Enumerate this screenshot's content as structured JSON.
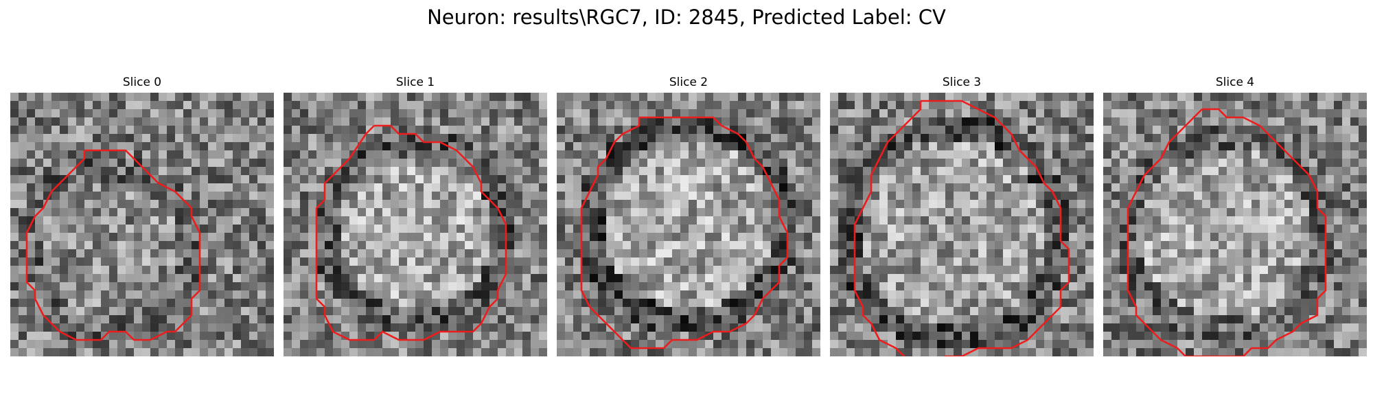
{
  "figure": {
    "title": "Neuron: results\\RGC7, ID: 2845, Predicted Label: CV",
    "colormap": "gray",
    "contour_color": "#ee1c1c",
    "grid_size": 32
  },
  "slices": [
    {
      "label": "Slice 0",
      "center_brightness": 0.55,
      "ring_brightness": 0.4,
      "cell_center": [
        12,
        19
      ],
      "cell_radius": 10,
      "contour": [
        [
          9,
          7
        ],
        [
          14,
          7
        ],
        [
          15,
          8
        ],
        [
          18,
          11
        ],
        [
          20,
          12
        ],
        [
          22,
          14
        ],
        [
          22,
          15
        ],
        [
          23,
          17
        ],
        [
          23,
          24
        ],
        [
          22,
          25
        ],
        [
          22,
          27
        ],
        [
          20,
          29
        ],
        [
          19,
          29
        ],
        [
          17,
          30
        ],
        [
          15,
          30
        ],
        [
          14,
          29
        ],
        [
          12,
          29
        ],
        [
          11,
          30
        ],
        [
          10,
          30
        ],
        [
          8,
          30
        ],
        [
          6,
          29
        ],
        [
          4,
          27
        ],
        [
          3,
          25
        ],
        [
          3,
          24
        ],
        [
          2,
          23
        ],
        [
          2,
          21
        ],
        [
          2,
          17
        ],
        [
          3,
          15
        ],
        [
          4,
          14
        ],
        [
          5,
          12
        ],
        [
          6,
          11
        ],
        [
          7,
          10
        ],
        [
          8,
          9
        ],
        [
          9,
          8
        ],
        [
          9,
          7
        ]
      ]
    },
    {
      "label": "Slice 1",
      "center_brightness": 0.65,
      "ring_brightness": 0.35,
      "cell_center": [
        16,
        17
      ],
      "cell_radius": 11,
      "contour": [
        [
          11,
          4
        ],
        [
          13,
          4
        ],
        [
          14,
          5
        ],
        [
          16,
          5
        ],
        [
          17,
          6
        ],
        [
          19,
          6
        ],
        [
          21,
          7
        ],
        [
          22,
          8
        ],
        [
          23,
          9
        ],
        [
          24,
          11
        ],
        [
          24,
          12
        ],
        [
          26,
          14
        ],
        [
          27,
          16
        ],
        [
          27,
          22
        ],
        [
          26,
          24
        ],
        [
          26,
          25
        ],
        [
          25,
          26
        ],
        [
          24,
          28
        ],
        [
          23,
          29
        ],
        [
          21,
          29
        ],
        [
          19,
          29
        ],
        [
          17,
          30
        ],
        [
          16,
          30
        ],
        [
          14,
          30
        ],
        [
          12,
          29
        ],
        [
          11,
          30
        ],
        [
          10,
          30
        ],
        [
          8,
          30
        ],
        [
          6,
          29
        ],
        [
          5,
          27
        ],
        [
          5,
          26
        ],
        [
          4,
          25
        ],
        [
          4,
          24
        ],
        [
          4,
          19
        ],
        [
          4,
          14
        ],
        [
          5,
          13
        ],
        [
          5,
          11
        ],
        [
          6,
          10
        ],
        [
          7,
          9
        ],
        [
          8,
          8
        ],
        [
          10,
          5
        ],
        [
          11,
          4
        ]
      ]
    },
    {
      "label": "Slice 2",
      "center_brightness": 0.65,
      "ring_brightness": 0.3,
      "cell_center": [
        16,
        16
      ],
      "cell_radius": 12,
      "contour": [
        [
          10,
          3
        ],
        [
          19,
          3
        ],
        [
          20,
          4
        ],
        [
          22,
          5
        ],
        [
          23,
          6
        ],
        [
          24,
          8
        ],
        [
          25,
          9
        ],
        [
          26,
          11
        ],
        [
          27,
          13
        ],
        [
          27,
          15
        ],
        [
          28,
          17
        ],
        [
          28,
          20
        ],
        [
          27,
          21
        ],
        [
          27,
          23
        ],
        [
          26,
          24
        ],
        [
          25,
          25
        ],
        [
          24,
          27
        ],
        [
          23,
          28
        ],
        [
          21,
          29
        ],
        [
          19,
          29
        ],
        [
          17,
          30
        ],
        [
          14,
          30
        ],
        [
          13,
          31
        ],
        [
          11,
          31
        ],
        [
          9,
          31
        ],
        [
          8,
          30
        ],
        [
          7,
          29
        ],
        [
          5,
          27
        ],
        [
          4,
          26
        ],
        [
          3,
          24
        ],
        [
          3,
          22
        ],
        [
          3,
          20
        ],
        [
          3,
          16
        ],
        [
          3,
          14
        ],
        [
          4,
          12
        ],
        [
          5,
          10
        ],
        [
          5,
          9
        ],
        [
          6,
          8
        ],
        [
          7,
          6
        ],
        [
          8,
          5
        ],
        [
          10,
          4
        ],
        [
          10,
          3
        ]
      ]
    },
    {
      "label": "Slice 3",
      "center_brightness": 0.62,
      "ring_brightness": 0.3,
      "cell_center": [
        15,
        17
      ],
      "cell_radius": 13,
      "contour": [
        [
          11,
          1
        ],
        [
          16,
          1
        ],
        [
          18,
          2
        ],
        [
          20,
          3
        ],
        [
          21,
          4
        ],
        [
          22,
          5
        ],
        [
          23,
          7
        ],
        [
          25,
          9
        ],
        [
          26,
          11
        ],
        [
          27,
          12
        ],
        [
          28,
          14
        ],
        [
          28,
          18
        ],
        [
          29,
          19
        ],
        [
          29,
          23
        ],
        [
          28,
          24
        ],
        [
          28,
          26
        ],
        [
          27,
          27
        ],
        [
          26,
          28
        ],
        [
          24,
          30
        ],
        [
          22,
          31
        ],
        [
          18,
          31
        ],
        [
          16,
          32
        ],
        [
          14,
          32
        ],
        [
          12,
          33
        ],
        [
          10,
          33
        ],
        [
          9,
          32
        ],
        [
          8,
          31
        ],
        [
          6,
          30
        ],
        [
          5,
          28
        ],
        [
          4,
          27
        ],
        [
          4,
          26
        ],
        [
          3,
          24
        ],
        [
          3,
          22
        ],
        [
          3,
          19
        ],
        [
          3,
          16
        ],
        [
          4,
          14
        ],
        [
          5,
          12
        ],
        [
          5,
          10
        ],
        [
          6,
          8
        ],
        [
          7,
          6
        ],
        [
          8,
          5
        ],
        [
          9,
          4
        ],
        [
          10,
          3
        ],
        [
          11,
          2
        ],
        [
          11,
          1
        ]
      ]
    },
    {
      "label": "Slice 4",
      "center_brightness": 0.65,
      "ring_brightness": 0.4,
      "cell_center": [
        15,
        17
      ],
      "cell_radius": 12,
      "contour": [
        [
          12,
          2
        ],
        [
          14,
          2
        ],
        [
          15,
          3
        ],
        [
          17,
          3
        ],
        [
          19,
          4
        ],
        [
          20,
          5
        ],
        [
          21,
          6
        ],
        [
          22,
          7
        ],
        [
          23,
          8
        ],
        [
          24,
          9
        ],
        [
          25,
          10
        ],
        [
          26,
          12
        ],
        [
          26,
          14
        ],
        [
          27,
          15
        ],
        [
          27,
          22
        ],
        [
          27,
          24
        ],
        [
          26,
          25
        ],
        [
          26,
          27
        ],
        [
          24,
          28
        ],
        [
          23,
          29
        ],
        [
          21,
          30
        ],
        [
          20,
          31
        ],
        [
          18,
          31
        ],
        [
          17,
          32
        ],
        [
          15,
          32
        ],
        [
          12,
          32
        ],
        [
          10,
          32
        ],
        [
          9,
          31
        ],
        [
          7,
          30
        ],
        [
          6,
          29
        ],
        [
          5,
          28
        ],
        [
          4,
          27
        ],
        [
          4,
          26
        ],
        [
          3,
          24
        ],
        [
          3,
          22
        ],
        [
          3,
          19
        ],
        [
          3,
          14
        ],
        [
          4,
          12
        ],
        [
          5,
          10
        ],
        [
          6,
          9
        ],
        [
          7,
          8
        ],
        [
          8,
          6
        ],
        [
          9,
          5
        ],
        [
          10,
          4
        ],
        [
          11,
          3
        ],
        [
          12,
          2
        ]
      ]
    }
  ]
}
